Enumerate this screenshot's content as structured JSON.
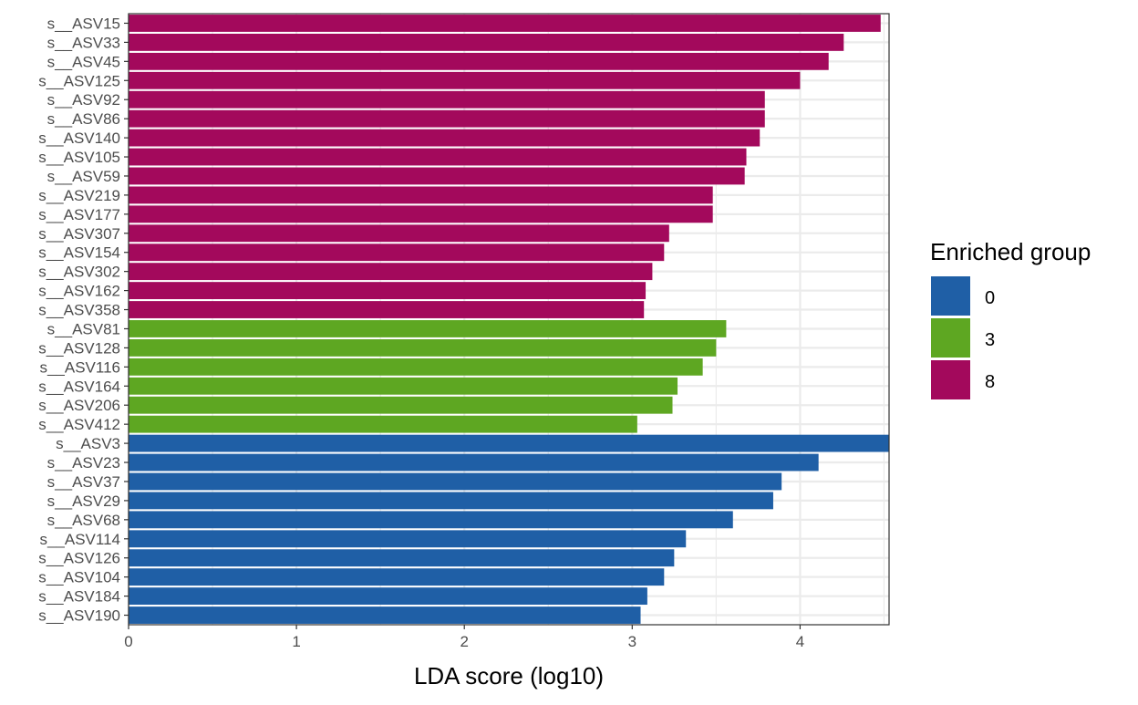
{
  "chart_data": {
    "type": "bar",
    "orientation": "horizontal",
    "xlabel": "LDA score (log10)",
    "ylabel": "",
    "xlim": [
      0,
      4.53
    ],
    "xticks": [
      0,
      1,
      2,
      3,
      4
    ],
    "grid": true,
    "legend": {
      "title": "Enriched group",
      "placement": "right",
      "items": [
        {
          "label": "0",
          "color": "#1f5fa6"
        },
        {
          "label": "3",
          "color": "#5ea722"
        },
        {
          "label": "8",
          "color": "#a3095c"
        }
      ]
    },
    "bars": [
      {
        "label": "s__ASV15",
        "value": 4.48,
        "group": "8"
      },
      {
        "label": "s__ASV33",
        "value": 4.26,
        "group": "8"
      },
      {
        "label": "s__ASV45",
        "value": 4.17,
        "group": "8"
      },
      {
        "label": "s__ASV125",
        "value": 4.0,
        "group": "8"
      },
      {
        "label": "s__ASV92",
        "value": 3.79,
        "group": "8"
      },
      {
        "label": "s__ASV86",
        "value": 3.79,
        "group": "8"
      },
      {
        "label": "s__ASV140",
        "value": 3.76,
        "group": "8"
      },
      {
        "label": "s__ASV105",
        "value": 3.68,
        "group": "8"
      },
      {
        "label": "s__ASV59",
        "value": 3.67,
        "group": "8"
      },
      {
        "label": "s__ASV219",
        "value": 3.48,
        "group": "8"
      },
      {
        "label": "s__ASV177",
        "value": 3.48,
        "group": "8"
      },
      {
        "label": "s__ASV307",
        "value": 3.22,
        "group": "8"
      },
      {
        "label": "s__ASV154",
        "value": 3.19,
        "group": "8"
      },
      {
        "label": "s__ASV302",
        "value": 3.12,
        "group": "8"
      },
      {
        "label": "s__ASV162",
        "value": 3.08,
        "group": "8"
      },
      {
        "label": "s__ASV358",
        "value": 3.07,
        "group": "8"
      },
      {
        "label": "s__ASV81",
        "value": 3.56,
        "group": "3"
      },
      {
        "label": "s__ASV128",
        "value": 3.5,
        "group": "3"
      },
      {
        "label": "s__ASV116",
        "value": 3.42,
        "group": "3"
      },
      {
        "label": "s__ASV164",
        "value": 3.27,
        "group": "3"
      },
      {
        "label": "s__ASV206",
        "value": 3.24,
        "group": "3"
      },
      {
        "label": "s__ASV412",
        "value": 3.03,
        "group": "3"
      },
      {
        "label": "s__ASV3",
        "value": 4.53,
        "group": "0"
      },
      {
        "label": "s__ASV23",
        "value": 4.11,
        "group": "0"
      },
      {
        "label": "s__ASV37",
        "value": 3.89,
        "group": "0"
      },
      {
        "label": "s__ASV29",
        "value": 3.84,
        "group": "0"
      },
      {
        "label": "s__ASV68",
        "value": 3.6,
        "group": "0"
      },
      {
        "label": "s__ASV114",
        "value": 3.32,
        "group": "0"
      },
      {
        "label": "s__ASV126",
        "value": 3.25,
        "group": "0"
      },
      {
        "label": "s__ASV104",
        "value": 3.19,
        "group": "0"
      },
      {
        "label": "s__ASV184",
        "value": 3.09,
        "group": "0"
      },
      {
        "label": "s__ASV190",
        "value": 3.05,
        "group": "0"
      }
    ]
  }
}
